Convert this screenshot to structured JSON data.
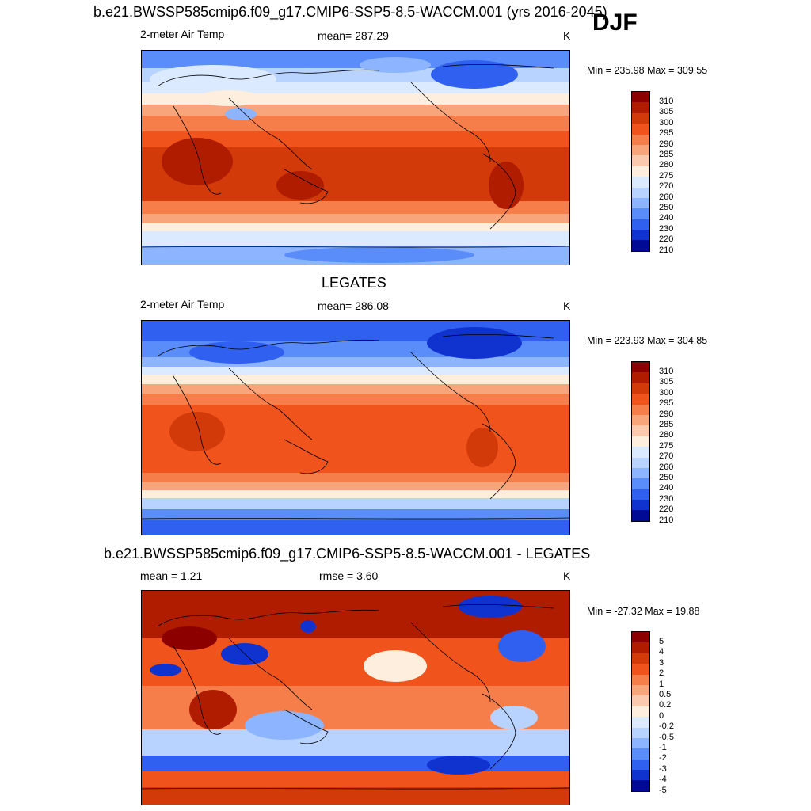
{
  "season": "DJF",
  "panels": [
    {
      "title": "b.e21.BWSSP585cmip6.f09_g17.CMIP6-SSP5-8.5-WACCM.001 (yrs 2016-2045)",
      "left_label": "2-meter Air Temp",
      "center_label": "mean= 287.29",
      "units": "K",
      "minmax": "Min = 235.98 Max = 309.55",
      "colorbar_labels": [
        "310",
        "305",
        "300",
        "295",
        "290",
        "285",
        "280",
        "275",
        "270",
        "260",
        "250",
        "240",
        "230",
        "220",
        "210"
      ]
    },
    {
      "title": "LEGATES",
      "left_label": "2-meter Air Temp",
      "center_label": "mean= 286.08",
      "units": "K",
      "minmax": "Min = 223.93 Max = 304.85",
      "colorbar_labels": [
        "310",
        "305",
        "300",
        "295",
        "290",
        "285",
        "280",
        "275",
        "270",
        "260",
        "250",
        "240",
        "230",
        "220",
        "210"
      ]
    },
    {
      "title": "b.e21.BWSSP585cmip6.f09_g17.CMIP6-SSP5-8.5-WACCM.001 - LEGATES",
      "left_label": "mean =   1.21",
      "center_label": "rmse =   3.60",
      "units": "K",
      "minmax": "Min = -27.32 Max =  19.88",
      "colorbar_labels": [
        "5",
        "4",
        "3",
        "2",
        "1",
        "0.5",
        "0.2",
        "0",
        "-0.2",
        "-0.5",
        "-1",
        "-2",
        "-3",
        "-4",
        "-5"
      ]
    }
  ],
  "colors": {
    "abs_scale": [
      "#8c0000",
      "#b01c00",
      "#d23a0a",
      "#f0531c",
      "#f67e4a",
      "#f9a57c",
      "#fbc9ad",
      "#fdeede",
      "#dbeaff",
      "#b8d3ff",
      "#8cb4ff",
      "#5a8cfa",
      "#2f60f0",
      "#1033d0",
      "#000a94"
    ],
    "diff_scale": [
      "#8c0000",
      "#b01c00",
      "#d23a0a",
      "#f0531c",
      "#f67e4a",
      "#f9a57c",
      "#fbc9ad",
      "#fdeede",
      "#dbeaff",
      "#b8d3ff",
      "#8cb4ff",
      "#5a8cfa",
      "#2f60f0",
      "#1033d0",
      "#000a94"
    ]
  }
}
